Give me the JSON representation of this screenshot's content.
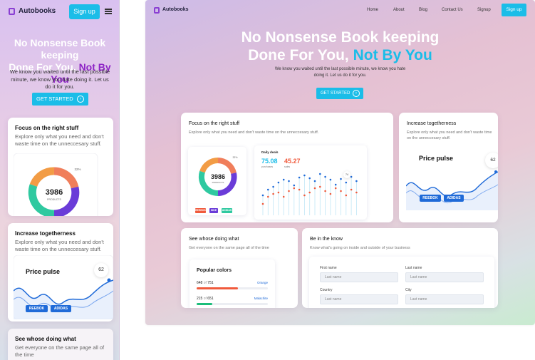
{
  "brand": "Autobooks",
  "colors": {
    "accent": "#1bbde8",
    "purple": "#8e24c6",
    "tag_blue": "#1f6ad8"
  },
  "mobile": {
    "signup": "Sign up",
    "hero_line1": "No Nonsense Book keeping",
    "hero_line2_prefix": "Done For You, ",
    "hero_highlight": "Not By You",
    "subtitle": "We know you waited until the last possible minute, we know you hate doing it. Let us do it for you.",
    "cta": "GET STARTED",
    "card1": {
      "title": "Focus on the right stuff",
      "text": "Explore only what you need and don't waste time on the unneccesary stuff.",
      "donut_value": "3986",
      "donut_label": "PRODUCTS",
      "percent": "32%"
    },
    "card2": {
      "title": "Increase togetherness",
      "text": "Explore only what you need and don't waste time on the unneccesary stuff.",
      "chart_title": "Price pulse",
      "badge": "62",
      "tags": [
        "REEBOK",
        "ADIDAS"
      ]
    },
    "card3": {
      "title": "See whose doing what",
      "text": "Get everyone on the same page all of the time"
    }
  },
  "desktop": {
    "nav": [
      "Home",
      "About",
      "Blog",
      "Contact Us",
      "Signup"
    ],
    "signup": "Sign up",
    "hero_line1": "No Nonsense Book keeping",
    "hero_line2_prefix": "Done For You, ",
    "hero_highlight": "Not By You",
    "subtitle": "We know you waited until the last possible minute, we know you hate doing it. Let us do it for you.",
    "cta": "GET STARTED",
    "card_focus": {
      "title": "Focus on the right stuff",
      "text": "Explore only what you need and don't waste time on the unneccesary stuff.",
      "donut_value": "3986",
      "donut_label": "PRODUCTS",
      "percent": "32%",
      "legend": [
        "REEBOK",
        "NIKE",
        "ADIDAS"
      ],
      "deals_title": "Daily deals",
      "stat1_value": "75.08",
      "stat1_label": "purchases",
      "stat2_value": "45.27",
      "stat2_label": "sales",
      "deals_badge": "74"
    },
    "card_together": {
      "title": "Increase togetherness",
      "text": "Explore only what you need and don't waste time on the unneccesary stuff.",
      "chart_title": "Price pulse",
      "badge": "62",
      "tags": [
        "REEBOK",
        "ADIDAS"
      ]
    },
    "card_whose": {
      "title": "See whose doing what",
      "text": "Get everyone on the same page all of the time",
      "colors_title": "Popular colors",
      "rows": [
        {
          "count": "648",
          "of": "of",
          "total": "751",
          "name": "Orange",
          "fraction": 0.86,
          "color": "#f05a3c"
        },
        {
          "count": "215",
          "of": "of",
          "total": "651",
          "name": "Malachite",
          "fraction": 0.33,
          "color": "#1bbd7a"
        }
      ]
    },
    "card_know": {
      "title": "Be in the know",
      "text": "Know what's going on inside and outside of your business",
      "fields": [
        {
          "label": "First name",
          "placeholder": "Last name"
        },
        {
          "label": "Last name",
          "placeholder": "Last name"
        },
        {
          "label": "Country",
          "placeholder": "Last name"
        },
        {
          "label": "City",
          "placeholder": "Last name"
        }
      ]
    }
  }
}
